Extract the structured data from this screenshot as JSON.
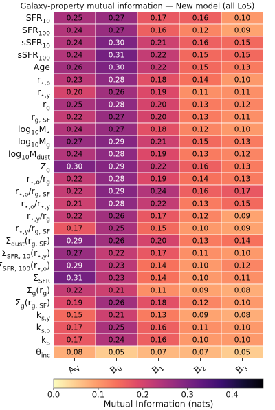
{
  "chart_data": {
    "type": "heatmap",
    "title": "Galaxy-property mutual information — New model (all LoS)",
    "colormap": "magma_r",
    "clim": [
      0,
      0.47
    ],
    "colorbar_label": "Mutual Information (nats)",
    "colorbar_ticks": [
      {
        "value": 0,
        "label": "0.0"
      },
      {
        "value": 0.1,
        "label": "0.1"
      },
      {
        "value": 0.2,
        "label": "0.2"
      },
      {
        "value": 0.3,
        "label": "0.3"
      },
      {
        "value": 0.4,
        "label": "0.4"
      }
    ],
    "columns": [
      [
        {
          "t": "A"
        },
        {
          "t": "V",
          "sub": true
        }
      ],
      [
        {
          "t": "B"
        },
        {
          "t": "0",
          "sub": true
        }
      ],
      [
        {
          "t": "B"
        },
        {
          "t": "1",
          "sub": true
        }
      ],
      [
        {
          "t": "B"
        },
        {
          "t": "2",
          "sub": true
        }
      ],
      [
        {
          "t": "B"
        },
        {
          "t": "3",
          "sub": true
        }
      ]
    ],
    "rows": [
      [
        {
          "t": "SFR"
        },
        {
          "t": "10",
          "sub": true
        }
      ],
      [
        {
          "t": "SFR"
        },
        {
          "t": "100",
          "sub": true
        }
      ],
      [
        {
          "t": "sSFR"
        },
        {
          "t": "10",
          "sub": true
        }
      ],
      [
        {
          "t": "sSFR"
        },
        {
          "t": "100",
          "sub": true
        }
      ],
      [
        {
          "t": "Age"
        }
      ],
      [
        {
          "t": "r"
        },
        {
          "t": "⋆,o",
          "sub": true
        }
      ],
      [
        {
          "t": "r"
        },
        {
          "t": "⋆,y",
          "sub": true
        }
      ],
      [
        {
          "t": "r"
        },
        {
          "t": "g",
          "sub": true
        }
      ],
      [
        {
          "t": "r"
        },
        {
          "t": "g, SF",
          "sub": true
        }
      ],
      [
        {
          "t": "log"
        },
        {
          "t": "10",
          "sub": true
        },
        {
          "t": "M"
        },
        {
          "t": "⋆",
          "sub": true
        }
      ],
      [
        {
          "t": "log"
        },
        {
          "t": "10",
          "sub": true
        },
        {
          "t": "M"
        },
        {
          "t": "g",
          "sub": true
        }
      ],
      [
        {
          "t": "log"
        },
        {
          "t": "10",
          "sub": true
        },
        {
          "t": "M"
        },
        {
          "t": "dust",
          "sub": true
        }
      ],
      [
        {
          "t": "Z"
        },
        {
          "t": "g",
          "sub": true
        }
      ],
      [
        {
          "t": "r"
        },
        {
          "t": "⋆,o",
          "sub": true
        },
        {
          "t": "/r"
        },
        {
          "t": "g",
          "sub": true
        }
      ],
      [
        {
          "t": "r"
        },
        {
          "t": "⋆,o",
          "sub": true
        },
        {
          "t": "/r"
        },
        {
          "t": "g, SF",
          "sub": true
        }
      ],
      [
        {
          "t": "r"
        },
        {
          "t": "⋆,o",
          "sub": true
        },
        {
          "t": "/r"
        },
        {
          "t": "⋆,y",
          "sub": true
        }
      ],
      [
        {
          "t": "r"
        },
        {
          "t": "⋆,y",
          "sub": true
        },
        {
          "t": "/r"
        },
        {
          "t": "g",
          "sub": true
        }
      ],
      [
        {
          "t": "r"
        },
        {
          "t": "⋆,y",
          "sub": true
        },
        {
          "t": "/r"
        },
        {
          "t": "g, SF",
          "sub": true
        }
      ],
      [
        {
          "t": "Σ"
        },
        {
          "t": "dust",
          "sub": true
        },
        {
          "t": "(r"
        },
        {
          "t": "g, SF",
          "sub": true
        },
        {
          "t": ")"
        }
      ],
      [
        {
          "t": "Σ"
        },
        {
          "t": "SFR, 10",
          "sub": true
        },
        {
          "t": "(r"
        },
        {
          "t": "⋆,y",
          "sub": true
        },
        {
          "t": ")"
        }
      ],
      [
        {
          "t": "Σ"
        },
        {
          "t": "SFR, 100",
          "sub": true
        },
        {
          "t": "(r"
        },
        {
          "t": "⋆,o",
          "sub": true
        },
        {
          "t": ")"
        }
      ],
      [
        {
          "t": "Σ"
        },
        {
          "t": "SFR",
          "sub": true
        }
      ],
      [
        {
          "t": "Σ"
        },
        {
          "t": "g",
          "sub": true
        },
        {
          "t": "(r"
        },
        {
          "t": "g",
          "sub": true
        },
        {
          "t": ")"
        }
      ],
      [
        {
          "t": "Σ"
        },
        {
          "t": "g",
          "sub": true
        },
        {
          "t": "(r"
        },
        {
          "t": "g, SF",
          "sub": true
        },
        {
          "t": ")"
        }
      ],
      [
        {
          "t": "k"
        },
        {
          "t": "s,y",
          "sub": true
        }
      ],
      [
        {
          "t": "k"
        },
        {
          "t": "s,o",
          "sub": true
        }
      ],
      [
        {
          "t": "k"
        },
        {
          "t": "S",
          "sub": true
        }
      ],
      [
        {
          "t": "θ"
        },
        {
          "t": "inc",
          "sub": true
        }
      ]
    ],
    "values": [
      [
        0.25,
        0.27,
        0.17,
        0.16,
        0.1
      ],
      [
        0.24,
        0.27,
        0.16,
        0.12,
        0.09
      ],
      [
        0.24,
        0.3,
        0.21,
        0.16,
        0.15
      ],
      [
        0.24,
        0.31,
        0.22,
        0.15,
        0.15
      ],
      [
        0.26,
        0.3,
        0.22,
        0.15,
        0.13
      ],
      [
        0.23,
        0.28,
        0.18,
        0.14,
        0.1
      ],
      [
        0.2,
        0.26,
        0.19,
        0.11,
        0.11
      ],
      [
        0.25,
        0.28,
        0.2,
        0.13,
        0.12
      ],
      [
        0.22,
        0.27,
        0.2,
        0.13,
        0.11
      ],
      [
        0.24,
        0.27,
        0.18,
        0.12,
        0.1
      ],
      [
        0.27,
        0.29,
        0.21,
        0.15,
        0.13
      ],
      [
        0.24,
        0.28,
        0.19,
        0.13,
        0.12
      ],
      [
        0.3,
        0.29,
        0.22,
        0.16,
        0.13
      ],
      [
        0.22,
        0.28,
        0.19,
        0.14,
        0.13
      ],
      [
        0.22,
        0.29,
        0.24,
        0.16,
        0.17
      ],
      [
        0.21,
        0.28,
        0.22,
        0.13,
        0.15
      ],
      [
        0.22,
        0.26,
        0.17,
        0.12,
        0.09
      ],
      [
        0.17,
        0.25,
        0.15,
        0.1,
        0.09
      ],
      [
        0.29,
        0.26,
        0.2,
        0.13,
        0.14
      ],
      [
        0.27,
        0.22,
        0.17,
        0.11,
        0.1
      ],
      [
        0.29,
        0.23,
        0.14,
        0.1,
        0.12
      ],
      [
        0.31,
        0.23,
        0.14,
        0.1,
        0.11
      ],
      [
        0.22,
        0.21,
        0.11,
        0.09,
        0.08
      ],
      [
        0.19,
        0.26,
        0.18,
        0.12,
        0.1
      ],
      [
        0.15,
        0.21,
        0.13,
        0.09,
        0.08
      ],
      [
        0.17,
        0.25,
        0.16,
        0.11,
        0.1
      ],
      [
        0.17,
        0.24,
        0.16,
        0.1,
        0.1
      ],
      [
        0.08,
        0.05,
        0.07,
        0.07,
        0.05
      ]
    ],
    "value_labels": [
      [
        "0.25",
        "0.27",
        "0.17",
        "0.16",
        "0.10"
      ],
      [
        "0.24",
        "0.27",
        "0.16",
        "0.12",
        "0.09"
      ],
      [
        "0.24",
        "0.30",
        "0.21",
        "0.16",
        "0.15"
      ],
      [
        "0.24",
        "0.31",
        "0.22",
        "0.15",
        "0.15"
      ],
      [
        "0.26",
        "0.30",
        "0.22",
        "0.15",
        "0.13"
      ],
      [
        "0.23",
        "0.28",
        "0.18",
        "0.14",
        "0.10"
      ],
      [
        "0.20",
        "0.26",
        "0.19",
        "0.11",
        "0.11"
      ],
      [
        "0.25",
        "0.28",
        "0.20",
        "0.13",
        "0.12"
      ],
      [
        "0.22",
        "0.27",
        "0.20",
        "0.13",
        "0.11"
      ],
      [
        "0.24",
        "0.27",
        "0.18",
        "0.12",
        "0.10"
      ],
      [
        "0.27",
        "0.29",
        "0.21",
        "0.15",
        "0.13"
      ],
      [
        "0.24",
        "0.28",
        "0.19",
        "0.13",
        "0.12"
      ],
      [
        "0.30",
        "0.29",
        "0.22",
        "0.16",
        "0.13"
      ],
      [
        "0.22",
        "0.28",
        "0.19",
        "0.14",
        "0.13"
      ],
      [
        "0.22",
        "0.29",
        "0.24",
        "0.16",
        "0.17"
      ],
      [
        "0.21",
        "0.28",
        "0.22",
        "0.13",
        "0.15"
      ],
      [
        "0.22",
        "0.26",
        "0.17",
        "0.12",
        "0.09"
      ],
      [
        "0.17",
        "0.25",
        "0.15",
        "0.10",
        "0.09"
      ],
      [
        "0.29",
        "0.26",
        "0.20",
        "0.13",
        "0.14"
      ],
      [
        "0.27",
        "0.22",
        "0.17",
        "0.11",
        "0.10"
      ],
      [
        "0.29",
        "0.23",
        "0.14",
        "0.10",
        "0.12"
      ],
      [
        "0.31",
        "0.23",
        "0.14",
        "0.10",
        "0.11"
      ],
      [
        "0.22",
        "0.21",
        "0.11",
        "0.09",
        "0.08"
      ],
      [
        "0.19",
        "0.26",
        "0.18",
        "0.12",
        "0.10"
      ],
      [
        "0.15",
        "0.21",
        "0.13",
        "0.09",
        "0.08"
      ],
      [
        "0.17",
        "0.25",
        "0.16",
        "0.11",
        "0.10"
      ],
      [
        "0.17",
        "0.24",
        "0.16",
        "0.10",
        "0.10"
      ],
      [
        "0.08",
        "0.05",
        "0.07",
        "0.07",
        "0.05"
      ]
    ]
  }
}
